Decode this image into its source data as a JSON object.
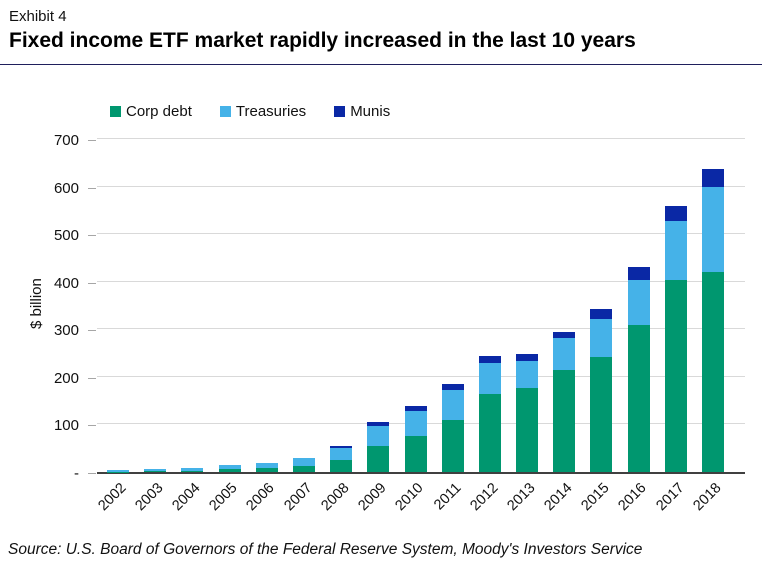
{
  "header": {
    "exhibit": "Exhibit 4",
    "title": "Fixed income ETF market rapidly increased in the last 10 years"
  },
  "chart_data": {
    "type": "bar",
    "stacked": true,
    "title": "Fixed income ETF market rapidly increased in the last 10 years",
    "categories": [
      "2002",
      "2003",
      "2004",
      "2005",
      "2006",
      "2007",
      "2008",
      "2009",
      "2010",
      "2011",
      "2012",
      "2013",
      "2014",
      "2015",
      "2016",
      "2017",
      "2018"
    ],
    "series": [
      {
        "name": "Corp debt",
        "color": "#00976f",
        "values": [
          1,
          2,
          3,
          6,
          8,
          12,
          25,
          55,
          75,
          110,
          164,
          177,
          214,
          242,
          309,
          403,
          420
        ]
      },
      {
        "name": "Treasuries",
        "color": "#45b2e8",
        "values": [
          3,
          4,
          6,
          9,
          12,
          18,
          25,
          41,
          54,
          62,
          66,
          56,
          67,
          80,
          95,
          124,
          180
        ]
      },
      {
        "name": "Munis",
        "color": "#0a28a5",
        "values": [
          0,
          0,
          0,
          0,
          0,
          0,
          4,
          10,
          9,
          13,
          14,
          15,
          14,
          20,
          27,
          32,
          37
        ]
      }
    ],
    "xlabel": "",
    "ylabel": "$ billion",
    "ylim": [
      0,
      700
    ],
    "ytick_interval": 100,
    "ytick_labels": [
      "-",
      "100",
      "200",
      "300",
      "400",
      "500",
      "600",
      "700"
    ],
    "grid": "horizontal",
    "legend_position": "top-left",
    "axis_color": "#404040",
    "gridline_color": "#d9d9d9"
  },
  "footer": {
    "source": "Source: U.S. Board of Governors of the Federal Reserve System, Moody's Investors Service"
  }
}
